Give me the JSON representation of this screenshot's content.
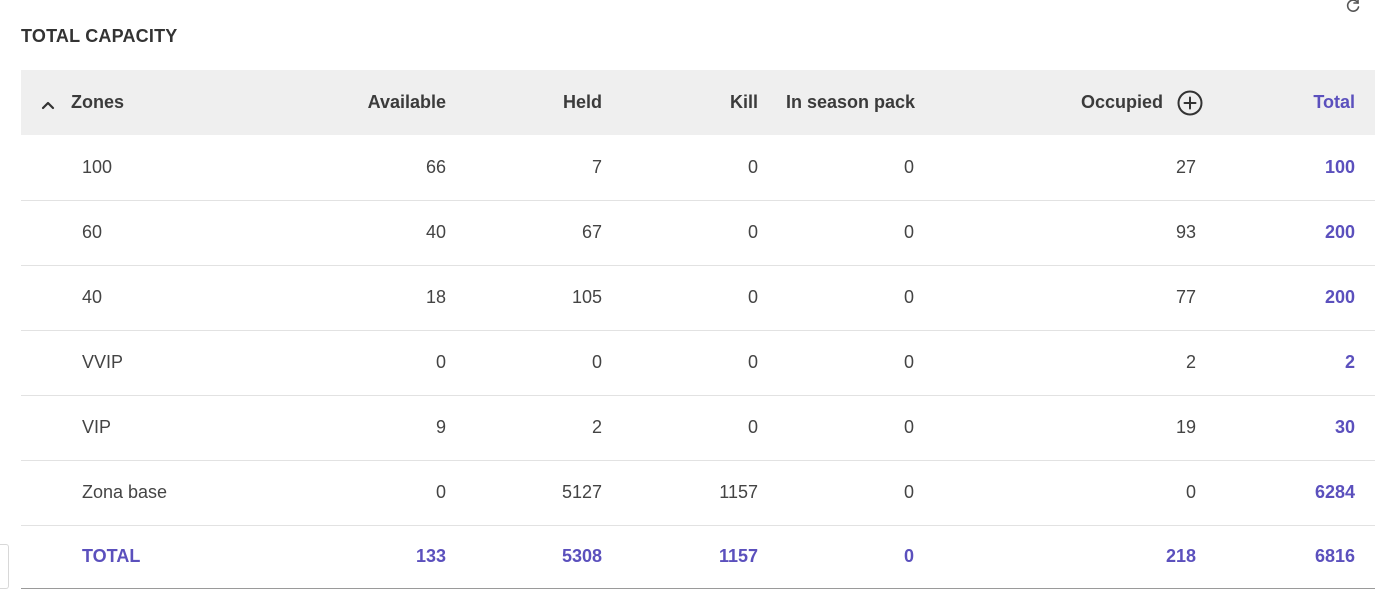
{
  "section_title": "TOTAL CAPACITY",
  "icons": {
    "refresh": "refresh-icon",
    "collapse": "chevron-up-icon",
    "add_column": "plus-circle-icon"
  },
  "colors": {
    "accent": "#5b50bd",
    "header_bg": "#efefef",
    "text": "#3a3a3a"
  },
  "table": {
    "headers": {
      "zones": "Zones",
      "available": "Available",
      "held": "Held",
      "kill": "Kill",
      "in_season_pack": "In season pack",
      "occupied": "Occupied",
      "total": "Total"
    },
    "rows": [
      {
        "zone": "100",
        "available": "66",
        "held": "7",
        "kill": "0",
        "in_season_pack": "0",
        "occupied": "27",
        "total": "100"
      },
      {
        "zone": "60",
        "available": "40",
        "held": "67",
        "kill": "0",
        "in_season_pack": "0",
        "occupied": "93",
        "total": "200"
      },
      {
        "zone": "40",
        "available": "18",
        "held": "105",
        "kill": "0",
        "in_season_pack": "0",
        "occupied": "77",
        "total": "200"
      },
      {
        "zone": "VVIP",
        "available": "0",
        "held": "0",
        "kill": "0",
        "in_season_pack": "0",
        "occupied": "2",
        "total": "2"
      },
      {
        "zone": "VIP",
        "available": "9",
        "held": "2",
        "kill": "0",
        "in_season_pack": "0",
        "occupied": "19",
        "total": "30"
      },
      {
        "zone": "Zona base",
        "available": "0",
        "held": "5127",
        "kill": "1157",
        "in_season_pack": "0",
        "occupied": "0",
        "total": "6284"
      }
    ],
    "totals": {
      "zone": "TOTAL",
      "available": "133",
      "held": "5308",
      "kill": "1157",
      "in_season_pack": "0",
      "occupied": "218",
      "total": "6816"
    }
  }
}
